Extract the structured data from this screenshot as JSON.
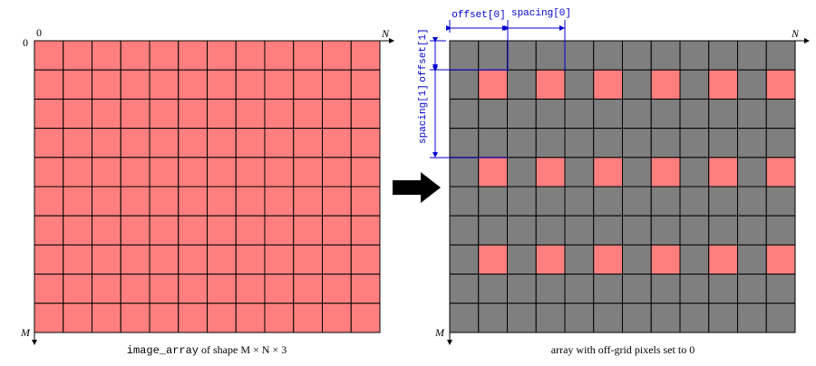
{
  "colors": {
    "pixel_on": "#ff7f7f",
    "pixel_off": "#7f7f7f",
    "grid_line": "#000000",
    "annotation": "#0000cc",
    "arrow": "#000000"
  },
  "grid": {
    "rows": 10,
    "cols": 12,
    "offset": [
      1,
      1
    ],
    "spacing": [
      2,
      3
    ]
  },
  "left_panel": {
    "origin_label": "0",
    "axis_x_label": "N",
    "axis_y_label": "M",
    "caption_code": "image_array",
    "caption_text": " of shape M × N × 3"
  },
  "right_panel": {
    "axis_x_label": "N",
    "axis_y_label": "M",
    "caption": "array with off-grid pixels set to 0",
    "labels": {
      "offset_x": "offset[0]",
      "spacing_x": "spacing[0]",
      "offset_y": "offset[1]",
      "spacing_y": "spacing[1]"
    }
  },
  "arrow_icon": "right-arrow-icon"
}
